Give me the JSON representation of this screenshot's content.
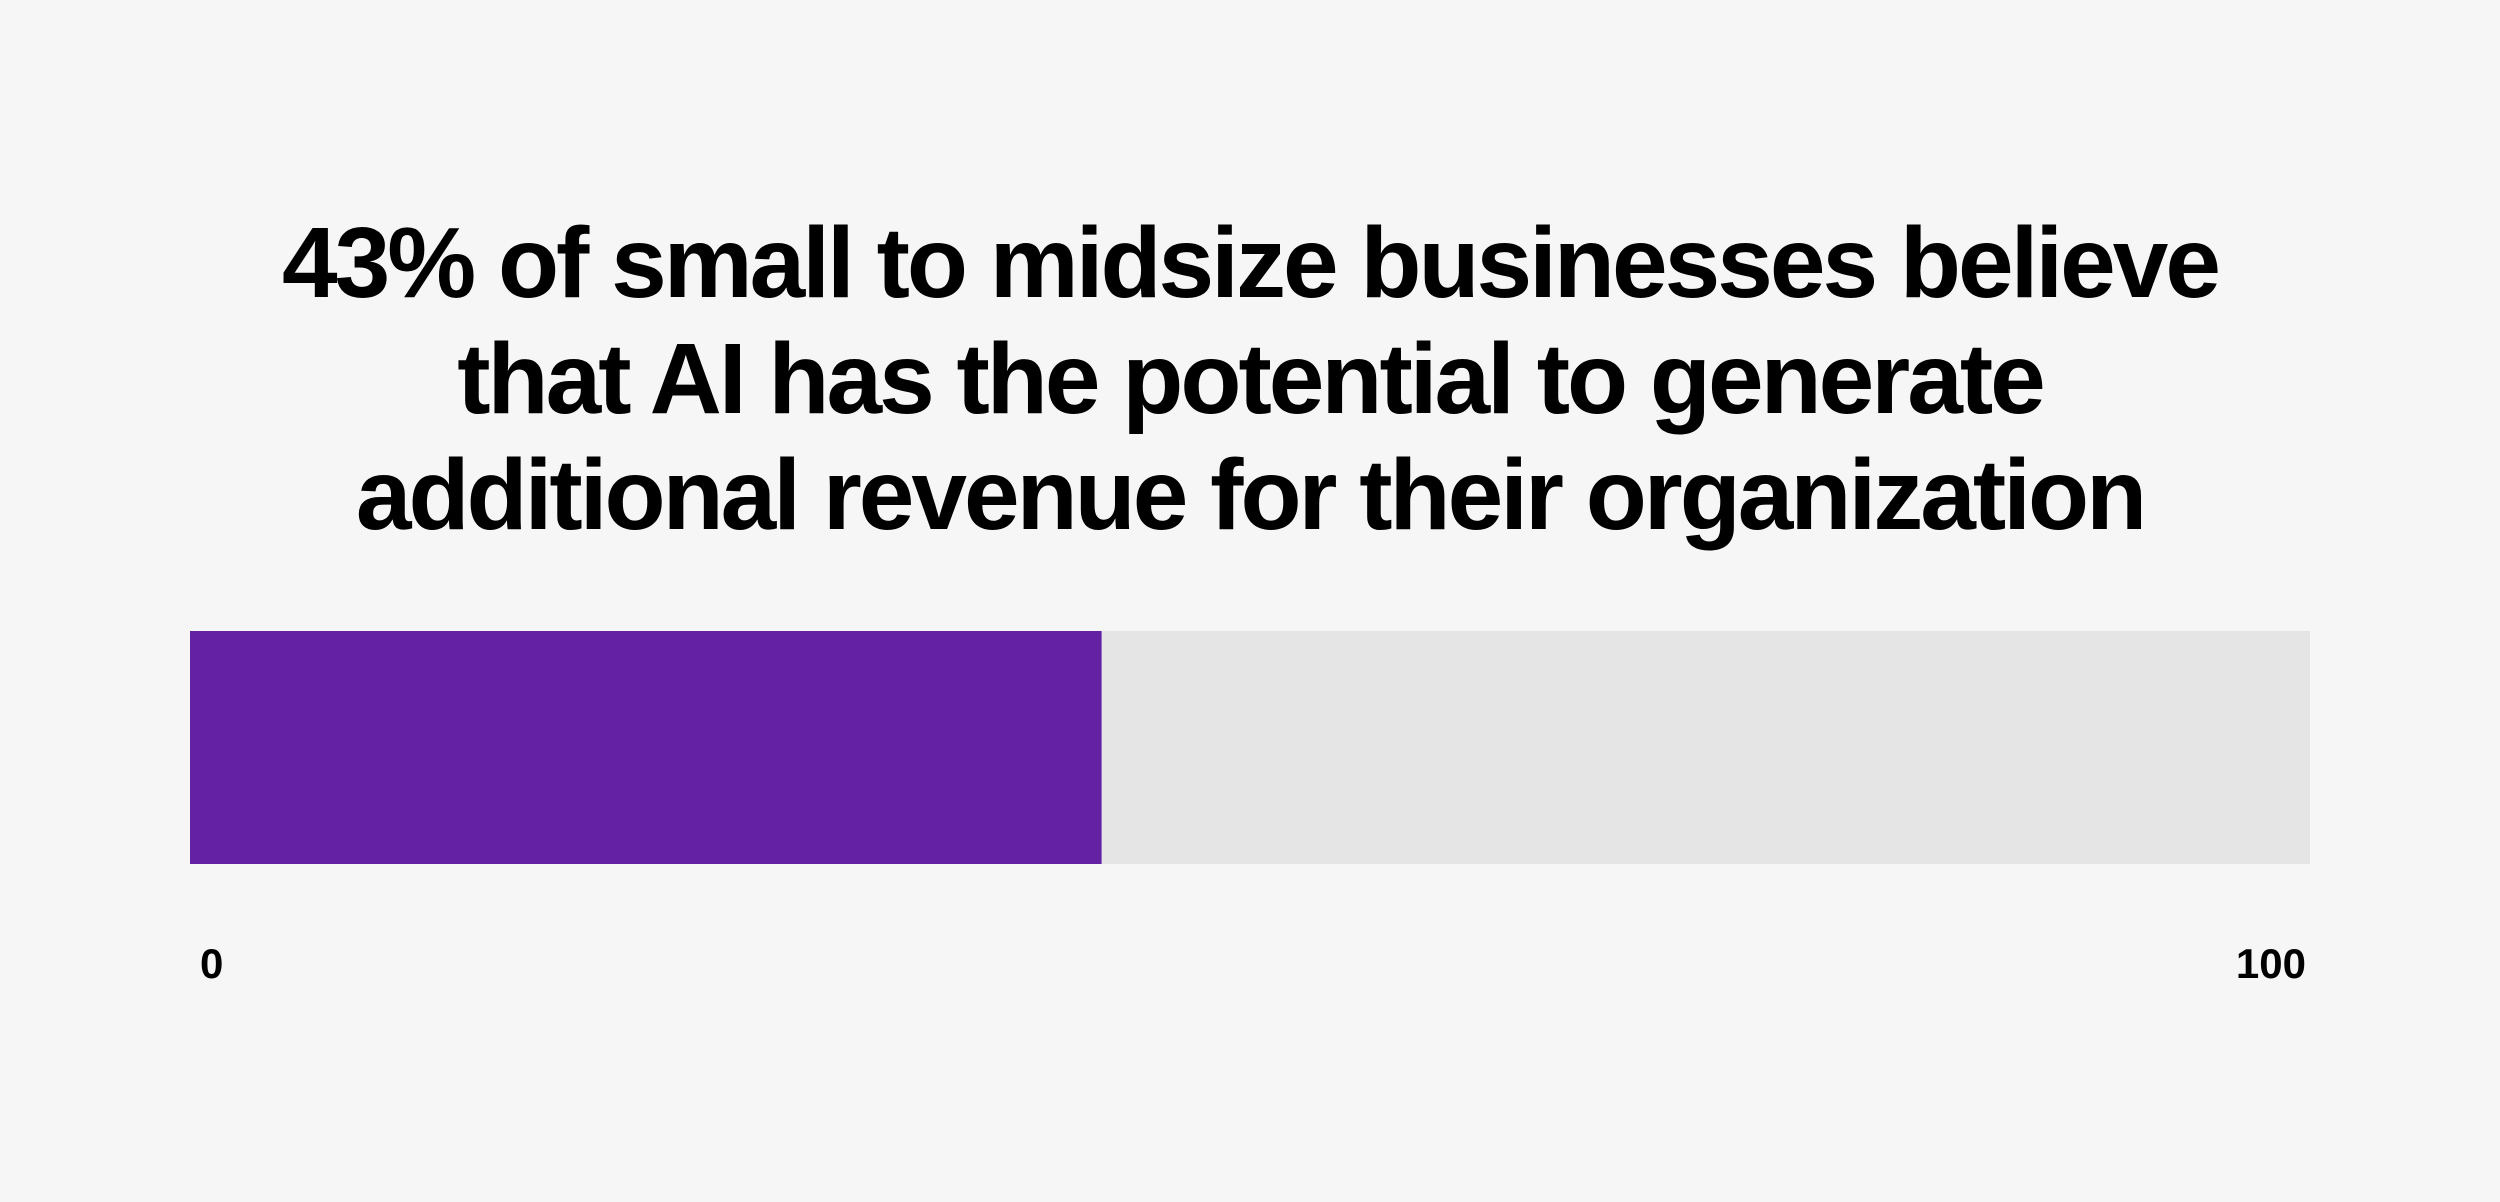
{
  "chart_data": {
    "type": "bar",
    "title_lines": [
      "43% of small to midsize businesses believe",
      "that AI has the potential to generate",
      "additional revenue for their organization"
    ],
    "categories": [
      ""
    ],
    "values": [
      43
    ],
    "xlim": [
      0,
      100
    ],
    "tick_labels": [
      "0",
      "100"
    ],
    "colors": {
      "fill": "#6421a4",
      "track": "#e5e5e5",
      "background": "#f6f6f6"
    },
    "grid": false
  }
}
